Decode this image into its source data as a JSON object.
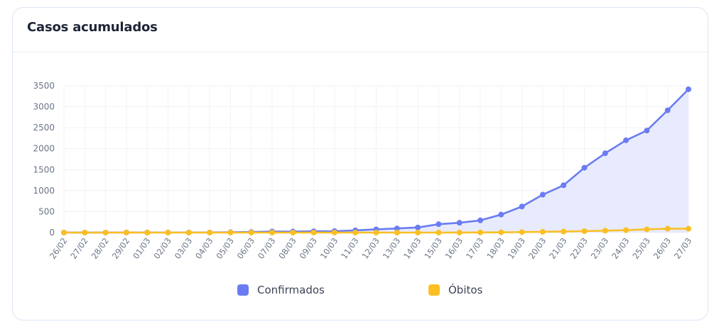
{
  "card": {
    "title": "Casos acumulados"
  },
  "chart_data": {
    "type": "area",
    "title": "",
    "xlabel": "",
    "ylabel": "",
    "x": [
      "26/02",
      "27/02",
      "28/02",
      "29/02",
      "01/03",
      "02/03",
      "03/03",
      "04/03",
      "05/03",
      "06/03",
      "07/03",
      "08/03",
      "09/03",
      "10/03",
      "11/03",
      "12/03",
      "13/03",
      "14/03",
      "15/03",
      "16/03",
      "17/03",
      "18/03",
      "19/03",
      "20/03",
      "21/03",
      "22/03",
      "23/03",
      "24/03",
      "25/03",
      "26/03",
      "27/03"
    ],
    "ylim": [
      0,
      3500
    ],
    "yticks": [
      0,
      500,
      1000,
      1500,
      2000,
      2500,
      3000,
      3500
    ],
    "grid": true,
    "legend_position": "bottom",
    "series": [
      {
        "name": "Confirmados",
        "color": "#6b7cf2",
        "fill": "#e4e8fd",
        "values": [
          1,
          1,
          1,
          2,
          2,
          2,
          2,
          3,
          8,
          13,
          25,
          25,
          30,
          34,
          52,
          77,
          98,
          121,
          200,
          234,
          291,
          428,
          621,
          904,
          1128,
          1546,
          1891,
          2201,
          2433,
          2915,
          3417
        ]
      },
      {
        "name": "Óbitos",
        "color": "#fbbf24",
        "fill": "none",
        "values": [
          0,
          0,
          0,
          0,
          0,
          0,
          0,
          0,
          0,
          0,
          0,
          0,
          0,
          0,
          0,
          0,
          0,
          0,
          0,
          1,
          4,
          6,
          11,
          18,
          25,
          34,
          46,
          57,
          77,
          92,
          92
        ]
      }
    ]
  }
}
